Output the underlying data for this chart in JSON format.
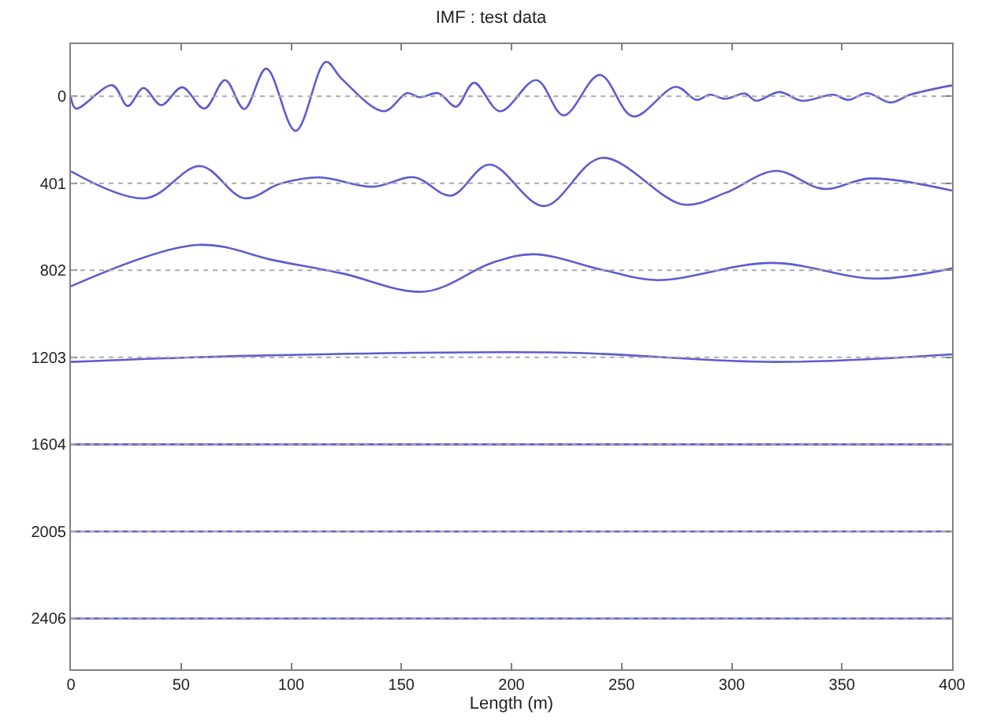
{
  "chart_data": {
    "type": "line",
    "title": "IMF : test data",
    "xlabel": "Length (m)",
    "xlim": [
      0,
      400
    ],
    "xticks": [
      0,
      50,
      100,
      150,
      200,
      250,
      300,
      350,
      400
    ],
    "ylim": [
      2640,
      -240
    ],
    "yticks": [
      0,
      401,
      802,
      1203,
      1604,
      2005,
      2406
    ],
    "marker": "none",
    "line_style": "solid",
    "ref_lines": [
      {
        "axis": "y",
        "value": 0,
        "label": null,
        "color": "#aaaaaa",
        "line_style": "dotted"
      },
      {
        "axis": "y",
        "value": 401,
        "label": null,
        "color": "#aaaaaa",
        "line_style": "dotted"
      },
      {
        "axis": "y",
        "value": 802,
        "label": null,
        "color": "#aaaaaa",
        "line_style": "dotted"
      },
      {
        "axis": "y",
        "value": 1203,
        "label": null,
        "color": "#aaaaaa",
        "line_style": "dotted"
      },
      {
        "axis": "y",
        "value": 1604,
        "label": null,
        "color": "#aaaaaa",
        "line_style": "dotted"
      },
      {
        "axis": "y",
        "value": 2005,
        "label": null,
        "color": "#aaaaaa",
        "line_style": "dotted"
      },
      {
        "axis": "y",
        "value": 2406,
        "label": null,
        "color": "#aaaaaa",
        "line_style": "dotted"
      }
    ],
    "series": [
      {
        "color": "#5c5cd0",
        "x": [
          0,
          2.3,
          18.8,
          25.8,
          32.9,
          41,
          50.5,
          60.6,
          70,
          78.7,
          88.7,
          102,
          115.7,
          123,
          142,
          152.6,
          158.5,
          166.7,
          174.9,
          183,
          194.8,
          211.3,
          223.7,
          240.1,
          255.2,
          274.6,
          284,
          290,
          297,
          306,
          311,
          321.6,
          332,
          346,
          353,
          361.5,
          372,
          381,
          400
        ],
        "values": [
          5,
          57,
          -50,
          45,
          -38,
          41,
          -41,
          57,
          -74,
          59,
          -127,
          160,
          -158,
          -79,
          69,
          -14,
          5,
          -14,
          48,
          -62,
          69,
          -74,
          88,
          -98,
          93,
          -43,
          17,
          -7,
          12,
          -12,
          21,
          -19,
          21,
          -7,
          17,
          -14,
          29,
          -7,
          -50
        ]
      },
      {
        "color": "#5c5cd0",
        "x": [
          0,
          34,
          58.7,
          78.7,
          95,
          112.7,
          137,
          156,
          172.5,
          190,
          214.8,
          241,
          278,
          297,
          320,
          341.5,
          363,
          400
        ],
        "values": [
          346,
          470,
          322,
          470,
          403,
          374,
          417,
          374,
          458,
          315,
          506,
          284,
          499,
          446,
          344,
          427,
          379,
          435
        ]
      },
      {
        "color": "#5c5cd0",
        "x": [
          0,
          57.5,
          92.7,
          123,
          160.8,
          191,
          210,
          243,
          266.4,
          318,
          365,
          400
        ],
        "values": [
          876,
          685,
          757,
          816,
          900,
          768,
          728,
          804,
          847,
          768,
          840,
          793
        ]
      },
      {
        "color": "#5c5cd0",
        "x": [
          0,
          81,
          222,
          320,
          400
        ],
        "values": [
          1224,
          1196,
          1181,
          1224,
          1189
        ]
      },
      {
        "color": "#5c5cd0",
        "x": [
          0,
          400
        ],
        "values": [
          1604,
          1604
        ]
      },
      {
        "color": "#5c5cd0",
        "x": [
          0,
          400
        ],
        "values": [
          2005,
          2005
        ]
      },
      {
        "color": "#5c5cd0",
        "x": [
          0,
          400
        ],
        "values": [
          2406,
          2406
        ]
      }
    ]
  }
}
